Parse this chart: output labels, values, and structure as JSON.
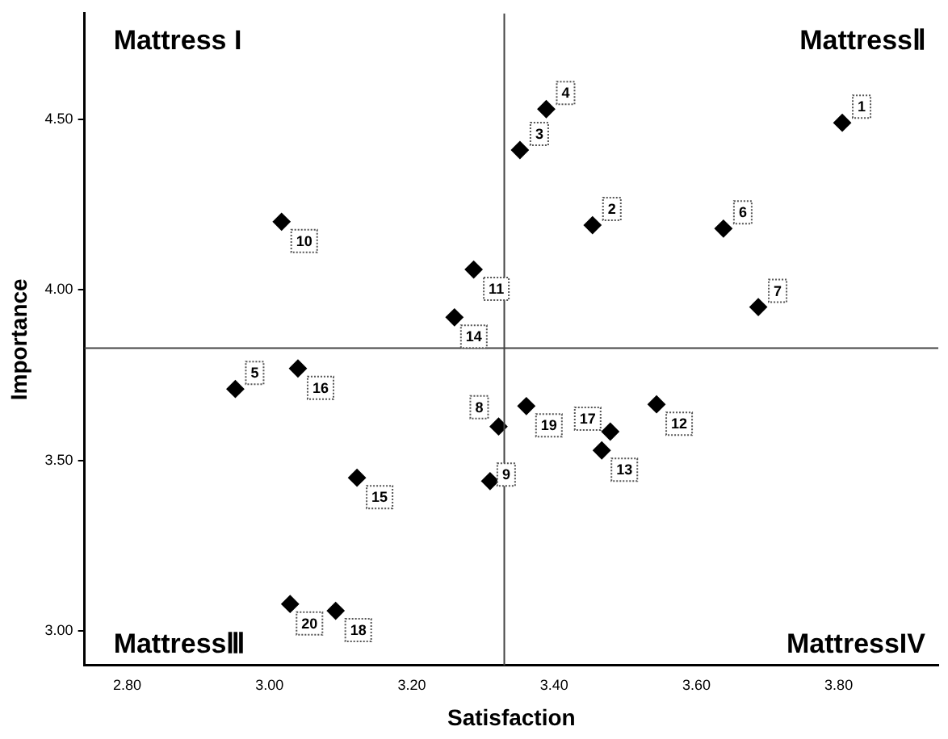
{
  "chart_data": {
    "type": "scatter",
    "xlabel": "Satisfaction",
    "ylabel": "Importance",
    "x": [
      3.805,
      3.454,
      3.352,
      3.389,
      2.952,
      3.638,
      3.687,
      3.322,
      3.31,
      3.017,
      3.287,
      3.544,
      3.467,
      3.26,
      3.123,
      3.04,
      3.479,
      3.093,
      3.361,
      3.029
    ],
    "values": [
      4.49,
      4.19,
      4.41,
      4.53,
      3.71,
      4.18,
      3.95,
      3.6,
      3.44,
      4.2,
      4.06,
      3.665,
      3.53,
      3.92,
      3.45,
      3.77,
      3.585,
      3.06,
      3.66,
      3.08
    ],
    "color": "#000000",
    "marker": "diamond",
    "grid": false,
    "legend": false,
    "xlim": [
      2.74,
      3.94
    ],
    "xticks": [
      {
        "value": 2.8,
        "label": "2.80"
      },
      {
        "value": 3,
        "label": "3.00"
      },
      {
        "value": 3.2,
        "label": "3.20"
      },
      {
        "value": 3.4,
        "label": "3.40"
      },
      {
        "value": 3.6,
        "label": "3.60"
      },
      {
        "value": 3.8,
        "label": "3.80"
      }
    ],
    "ylim": [
      2.9,
      4.81
    ],
    "yticks": [
      {
        "value": 3,
        "label": "3.00"
      },
      {
        "value": 3.5,
        "label": "3.50"
      },
      {
        "value": 4,
        "label": "4.00"
      },
      {
        "value": 4.5,
        "label": "4.50"
      }
    ],
    "ref_lines": [
      {
        "axis": "x",
        "value": 3.33,
        "color": "#444444"
      },
      {
        "axis": "y",
        "value": 3.83,
        "color": "#444444"
      }
    ],
    "annotations": [
      "Mattress I",
      "MattressⅡ",
      "MattressⅢ",
      "MattressIV",
      {
        "text": "1",
        "x": 3.805,
        "y": 4.49
      },
      {
        "text": "2",
        "x": 3.454,
        "y": 4.19
      },
      {
        "text": "3",
        "x": 3.352,
        "y": 4.41
      },
      {
        "text": "4",
        "x": 3.389,
        "y": 4.53
      },
      {
        "text": "5",
        "x": 2.952,
        "y": 3.71
      },
      {
        "text": "6",
        "x": 3.638,
        "y": 4.18
      },
      {
        "text": "7",
        "x": 3.687,
        "y": 3.95
      },
      {
        "text": "8",
        "x": 3.322,
        "y": 3.6
      },
      {
        "text": "9",
        "x": 3.31,
        "y": 3.44
      },
      {
        "text": "10",
        "x": 3.017,
        "y": 4.2
      },
      {
        "text": "11",
        "x": 3.287,
        "y": 4.06
      },
      {
        "text": "12",
        "x": 3.544,
        "y": 3.665
      },
      {
        "text": "13",
        "x": 3.467,
        "y": 3.53
      },
      {
        "text": "14",
        "x": 3.26,
        "y": 3.92
      },
      {
        "text": "15",
        "x": 3.123,
        "y": 3.45
      },
      {
        "text": "16",
        "x": 3.04,
        "y": 3.77
      },
      {
        "text": "17",
        "x": 3.479,
        "y": 3.585
      },
      {
        "text": "18",
        "x": 3.093,
        "y": 3.06
      },
      {
        "text": "19",
        "x": 3.361,
        "y": 3.66
      },
      {
        "text": "20",
        "x": 3.029,
        "y": 3.08
      }
    ]
  }
}
